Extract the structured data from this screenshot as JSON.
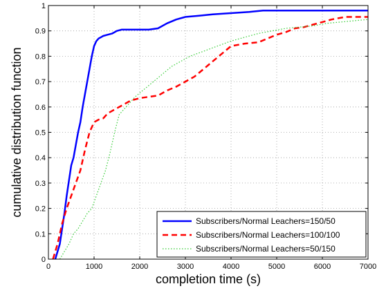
{
  "chart_data": {
    "type": "line",
    "title": "",
    "xlabel": "completion time (s)",
    "ylabel": "cumulative distribution function",
    "xlim": [
      0,
      7000
    ],
    "ylim": [
      0,
      1
    ],
    "x_ticks": [
      0,
      1000,
      2000,
      3000,
      4000,
      5000,
      6000,
      7000
    ],
    "y_ticks": [
      0,
      0.1,
      0.2,
      0.3,
      0.4,
      0.5,
      0.6,
      0.7,
      0.8,
      0.9,
      1
    ],
    "x_tick_labels": [
      "0",
      "1000",
      "2000",
      "3000",
      "4000",
      "5000",
      "6000",
      "7000"
    ],
    "y_tick_labels": [
      "0",
      "0.1",
      "0.2",
      "0.3",
      "0.4",
      "0.5",
      "0.6",
      "0.7",
      "0.8",
      "0.9",
      "1"
    ],
    "grid": true,
    "legend_position": "bottom-right",
    "series": [
      {
        "name": "Subscribers/Normal Leachers=150/50",
        "color": "#0000ff",
        "style": "solid",
        "x": [
          150,
          250,
          300,
          350,
          400,
          450,
          500,
          550,
          600,
          650,
          700,
          750,
          800,
          850,
          900,
          950,
          1000,
          1050,
          1100,
          1150,
          1200,
          1300,
          1400,
          1500,
          1600,
          1800,
          2000,
          2200,
          2400,
          2600,
          2800,
          3000,
          3300,
          3600,
          4000,
          4400,
          4700,
          5000,
          5500,
          6000,
          6500,
          7000
        ],
        "y": [
          0.0,
          0.06,
          0.12,
          0.18,
          0.25,
          0.31,
          0.37,
          0.4,
          0.45,
          0.5,
          0.54,
          0.6,
          0.65,
          0.7,
          0.75,
          0.8,
          0.84,
          0.86,
          0.87,
          0.875,
          0.88,
          0.885,
          0.89,
          0.9,
          0.905,
          0.905,
          0.905,
          0.905,
          0.91,
          0.93,
          0.945,
          0.955,
          0.96,
          0.965,
          0.97,
          0.975,
          0.98,
          0.98,
          0.98,
          0.98,
          0.98,
          0.98
        ]
      },
      {
        "name": "Subscribers/Normal Leachers=100/100",
        "color": "#ff0000",
        "style": "dashed",
        "x": [
          100,
          200,
          300,
          400,
          500,
          600,
          700,
          800,
          900,
          1000,
          1100,
          1200,
          1300,
          1400,
          1500,
          1600,
          1800,
          2000,
          2200,
          2400,
          2600,
          2800,
          3000,
          3200,
          3400,
          3600,
          3800,
          4000,
          4300,
          4600,
          4800,
          5000,
          5200,
          5400,
          5600,
          5800,
          6000,
          6200,
          6500,
          7000
        ],
        "y": [
          0.0,
          0.06,
          0.14,
          0.2,
          0.25,
          0.3,
          0.35,
          0.43,
          0.5,
          0.54,
          0.55,
          0.555,
          0.575,
          0.585,
          0.595,
          0.605,
          0.625,
          0.635,
          0.64,
          0.645,
          0.665,
          0.68,
          0.7,
          0.72,
          0.75,
          0.78,
          0.81,
          0.84,
          0.85,
          0.855,
          0.87,
          0.885,
          0.895,
          0.91,
          0.915,
          0.925,
          0.935,
          0.945,
          0.955,
          0.955
        ]
      },
      {
        "name": "Subscribers/Normal Leachers=50/150",
        "color": "#33cc33",
        "style": "dotted",
        "x": [
          250,
          350,
          450,
          550,
          650,
          750,
          850,
          950,
          1050,
          1150,
          1250,
          1350,
          1450,
          1550,
          1700,
          1900,
          2100,
          2300,
          2500,
          2700,
          2900,
          3100,
          3400,
          3700,
          4000,
          4300,
          4600,
          4900,
          5200,
          5500,
          5800,
          6100,
          6400,
          6700,
          7000
        ],
        "y": [
          0.0,
          0.03,
          0.06,
          0.1,
          0.12,
          0.15,
          0.18,
          0.2,
          0.25,
          0.3,
          0.35,
          0.42,
          0.5,
          0.57,
          0.6,
          0.64,
          0.67,
          0.7,
          0.73,
          0.76,
          0.78,
          0.8,
          0.82,
          0.84,
          0.86,
          0.875,
          0.89,
          0.9,
          0.91,
          0.915,
          0.92,
          0.93,
          0.935,
          0.94,
          0.945
        ]
      }
    ]
  }
}
